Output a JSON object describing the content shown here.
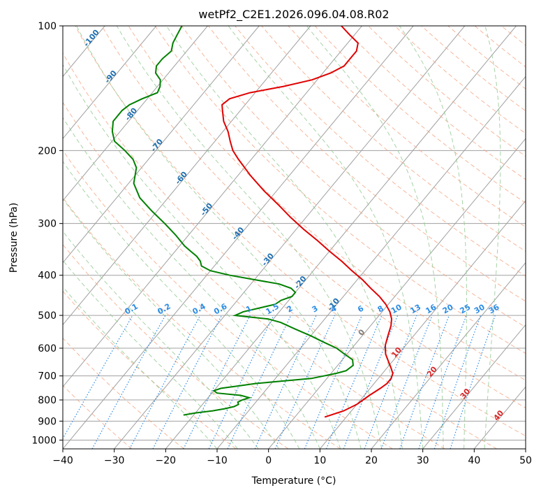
{
  "chart_data": {
    "type": "skew-t",
    "title": "wetPf2_C2E1.2026.096.04.08.R02",
    "xlabel": "Temperature (°C)",
    "ylabel": "Pressure (hPa)",
    "xlim": [
      -40,
      50
    ],
    "ylim": [
      1050,
      100
    ],
    "y_scale": "log",
    "x_ticks": [
      "−40",
      "−30",
      "−20",
      "−10",
      "0",
      "10",
      "20",
      "30",
      "40",
      "50"
    ],
    "x_tick_values": [
      -40,
      -30,
      -20,
      -10,
      0,
      10,
      20,
      30,
      40,
      50
    ],
    "y_ticks": [
      "100",
      "200",
      "300",
      "400",
      "500",
      "600",
      "700",
      "800",
      "900",
      "1000"
    ],
    "y_tick_values": [
      100,
      200,
      300,
      400,
      500,
      600,
      700,
      800,
      900,
      1000
    ],
    "grid": true,
    "colors": {
      "temperature": "#e00000",
      "dewpoint": "#008000",
      "isotherm": "#a0a0a0",
      "dry_adiabat": "#f4a582",
      "moist_adiabat": "#90c890",
      "mixing_ratio": "#2b8ce6",
      "isotherm_label": "#1f6fb0",
      "zero_label": "#808080",
      "moist_label": "#d62728",
      "tick_scale_color": "#d2b48c"
    },
    "isotherm_labels": [
      {
        "t": -100,
        "p": 108,
        "text": "-100"
      },
      {
        "t": -90,
        "p": 134,
        "text": "-90"
      },
      {
        "t": -80,
        "p": 165,
        "text": "-80"
      },
      {
        "t": -70,
        "p": 196,
        "text": "-70"
      },
      {
        "t": -60,
        "p": 235,
        "text": "-60"
      },
      {
        "t": -50,
        "p": 280,
        "text": "-50"
      },
      {
        "t": -40,
        "p": 320,
        "text": "-40"
      },
      {
        "t": -30,
        "p": 370,
        "text": "-30"
      },
      {
        "t": -20,
        "p": 420,
        "text": "-20"
      },
      {
        "t": -10,
        "p": 475,
        "text": "-10"
      },
      {
        "t": 0,
        "p": 555,
        "text": "0"
      }
    ],
    "mixing_ratio_labels": [
      "0.1",
      "0.2",
      "0.4",
      "0.6",
      "1",
      "1.5",
      "2",
      "3",
      "4",
      "6",
      "8",
      "10",
      "13",
      "16",
      "20",
      "25",
      "30",
      "36"
    ],
    "mixing_ratio_values": [
      0.1,
      0.2,
      0.4,
      0.6,
      1,
      1.5,
      2,
      3,
      4,
      6,
      8,
      10,
      13,
      16,
      20,
      25,
      30,
      36
    ],
    "moist_labels": [
      {
        "text": "10",
        "t": 10,
        "p": 620
      },
      {
        "text": "20",
        "t": 20,
        "p": 690
      },
      {
        "text": "30",
        "t": 30,
        "p": 780
      },
      {
        "text": "40",
        "t": 40,
        "p": 880
      }
    ],
    "temperature_profile": {
      "p": [
        880,
        850,
        820,
        800,
        780,
        750,
        730,
        710,
        690,
        670,
        650,
        620,
        590,
        560,
        530,
        510,
        490,
        470,
        450,
        430,
        410,
        390,
        370,
        350,
        330,
        310,
        290,
        270,
        250,
        230,
        210,
        200,
        190,
        180,
        170,
        160,
        155,
        150,
        145,
        140,
        135,
        130,
        125,
        120,
        115,
        110,
        105,
        100
      ],
      "t": [
        5.8,
        8.5,
        10.0,
        10.5,
        11.0,
        12.0,
        12.5,
        12.5,
        12.0,
        10.8,
        9.5,
        7.5,
        6.0,
        5.0,
        4.0,
        3.0,
        1.5,
        -0.5,
        -3.0,
        -6.0,
        -9.0,
        -12.5,
        -16.0,
        -20.0,
        -24.0,
        -28.5,
        -33.0,
        -37.5,
        -42.5,
        -47.5,
        -52.5,
        -55.0,
        -57.0,
        -59.0,
        -61.5,
        -63.5,
        -64.5,
        -64.0,
        -61.0,
        -55.5,
        -51.0,
        -48.5,
        -47.0,
        -47.0,
        -47.0,
        -48.0,
        -51.0,
        -54.0
      ]
    },
    "dewpoint_profile": {
      "p": [
        870,
        860,
        850,
        840,
        830,
        820,
        810,
        800,
        790,
        780,
        770,
        760,
        750,
        740,
        730,
        720,
        710,
        700,
        690,
        680,
        660,
        640,
        620,
        600,
        580,
        560,
        540,
        520,
        510,
        505,
        500,
        490,
        480,
        470,
        460,
        450,
        440,
        430,
        420,
        410,
        400,
        390,
        380,
        370,
        360,
        350,
        340,
        320,
        300,
        280,
        260,
        240,
        220,
        210,
        200,
        190,
        180,
        170,
        160,
        155,
        150,
        145,
        140,
        135,
        130,
        125,
        120,
        115,
        110,
        105,
        100
      ],
      "t": [
        -22.0,
        -20.0,
        -17.0,
        -15.0,
        -13.5,
        -13.0,
        -13.5,
        -13.0,
        -12.0,
        -14.0,
        -19.0,
        -20.0,
        -19.0,
        -16.0,
        -13.0,
        -8.0,
        -3.0,
        -1.0,
        1.0,
        2.5,
        3.0,
        2.0,
        -0.5,
        -3.0,
        -6.5,
        -10.0,
        -14.0,
        -18.0,
        -21.0,
        -24.5,
        -28.0,
        -27.0,
        -24.5,
        -22.0,
        -21.5,
        -20.0,
        -20.0,
        -21.5,
        -24.5,
        -30.0,
        -35.5,
        -40.0,
        -42.5,
        -43.5,
        -45.0,
        -47.0,
        -49.0,
        -52.5,
        -56.5,
        -61.0,
        -65.5,
        -69.0,
        -71.0,
        -73.0,
        -76.0,
        -79.5,
        -81.5,
        -83.0,
        -83.0,
        -82.5,
        -81.0,
        -79.0,
        -79.5,
        -80.5,
        -82.5,
        -83.5,
        -83.5,
        -83.0,
        -84.0,
        -84.5,
        -85.0
      ]
    }
  }
}
